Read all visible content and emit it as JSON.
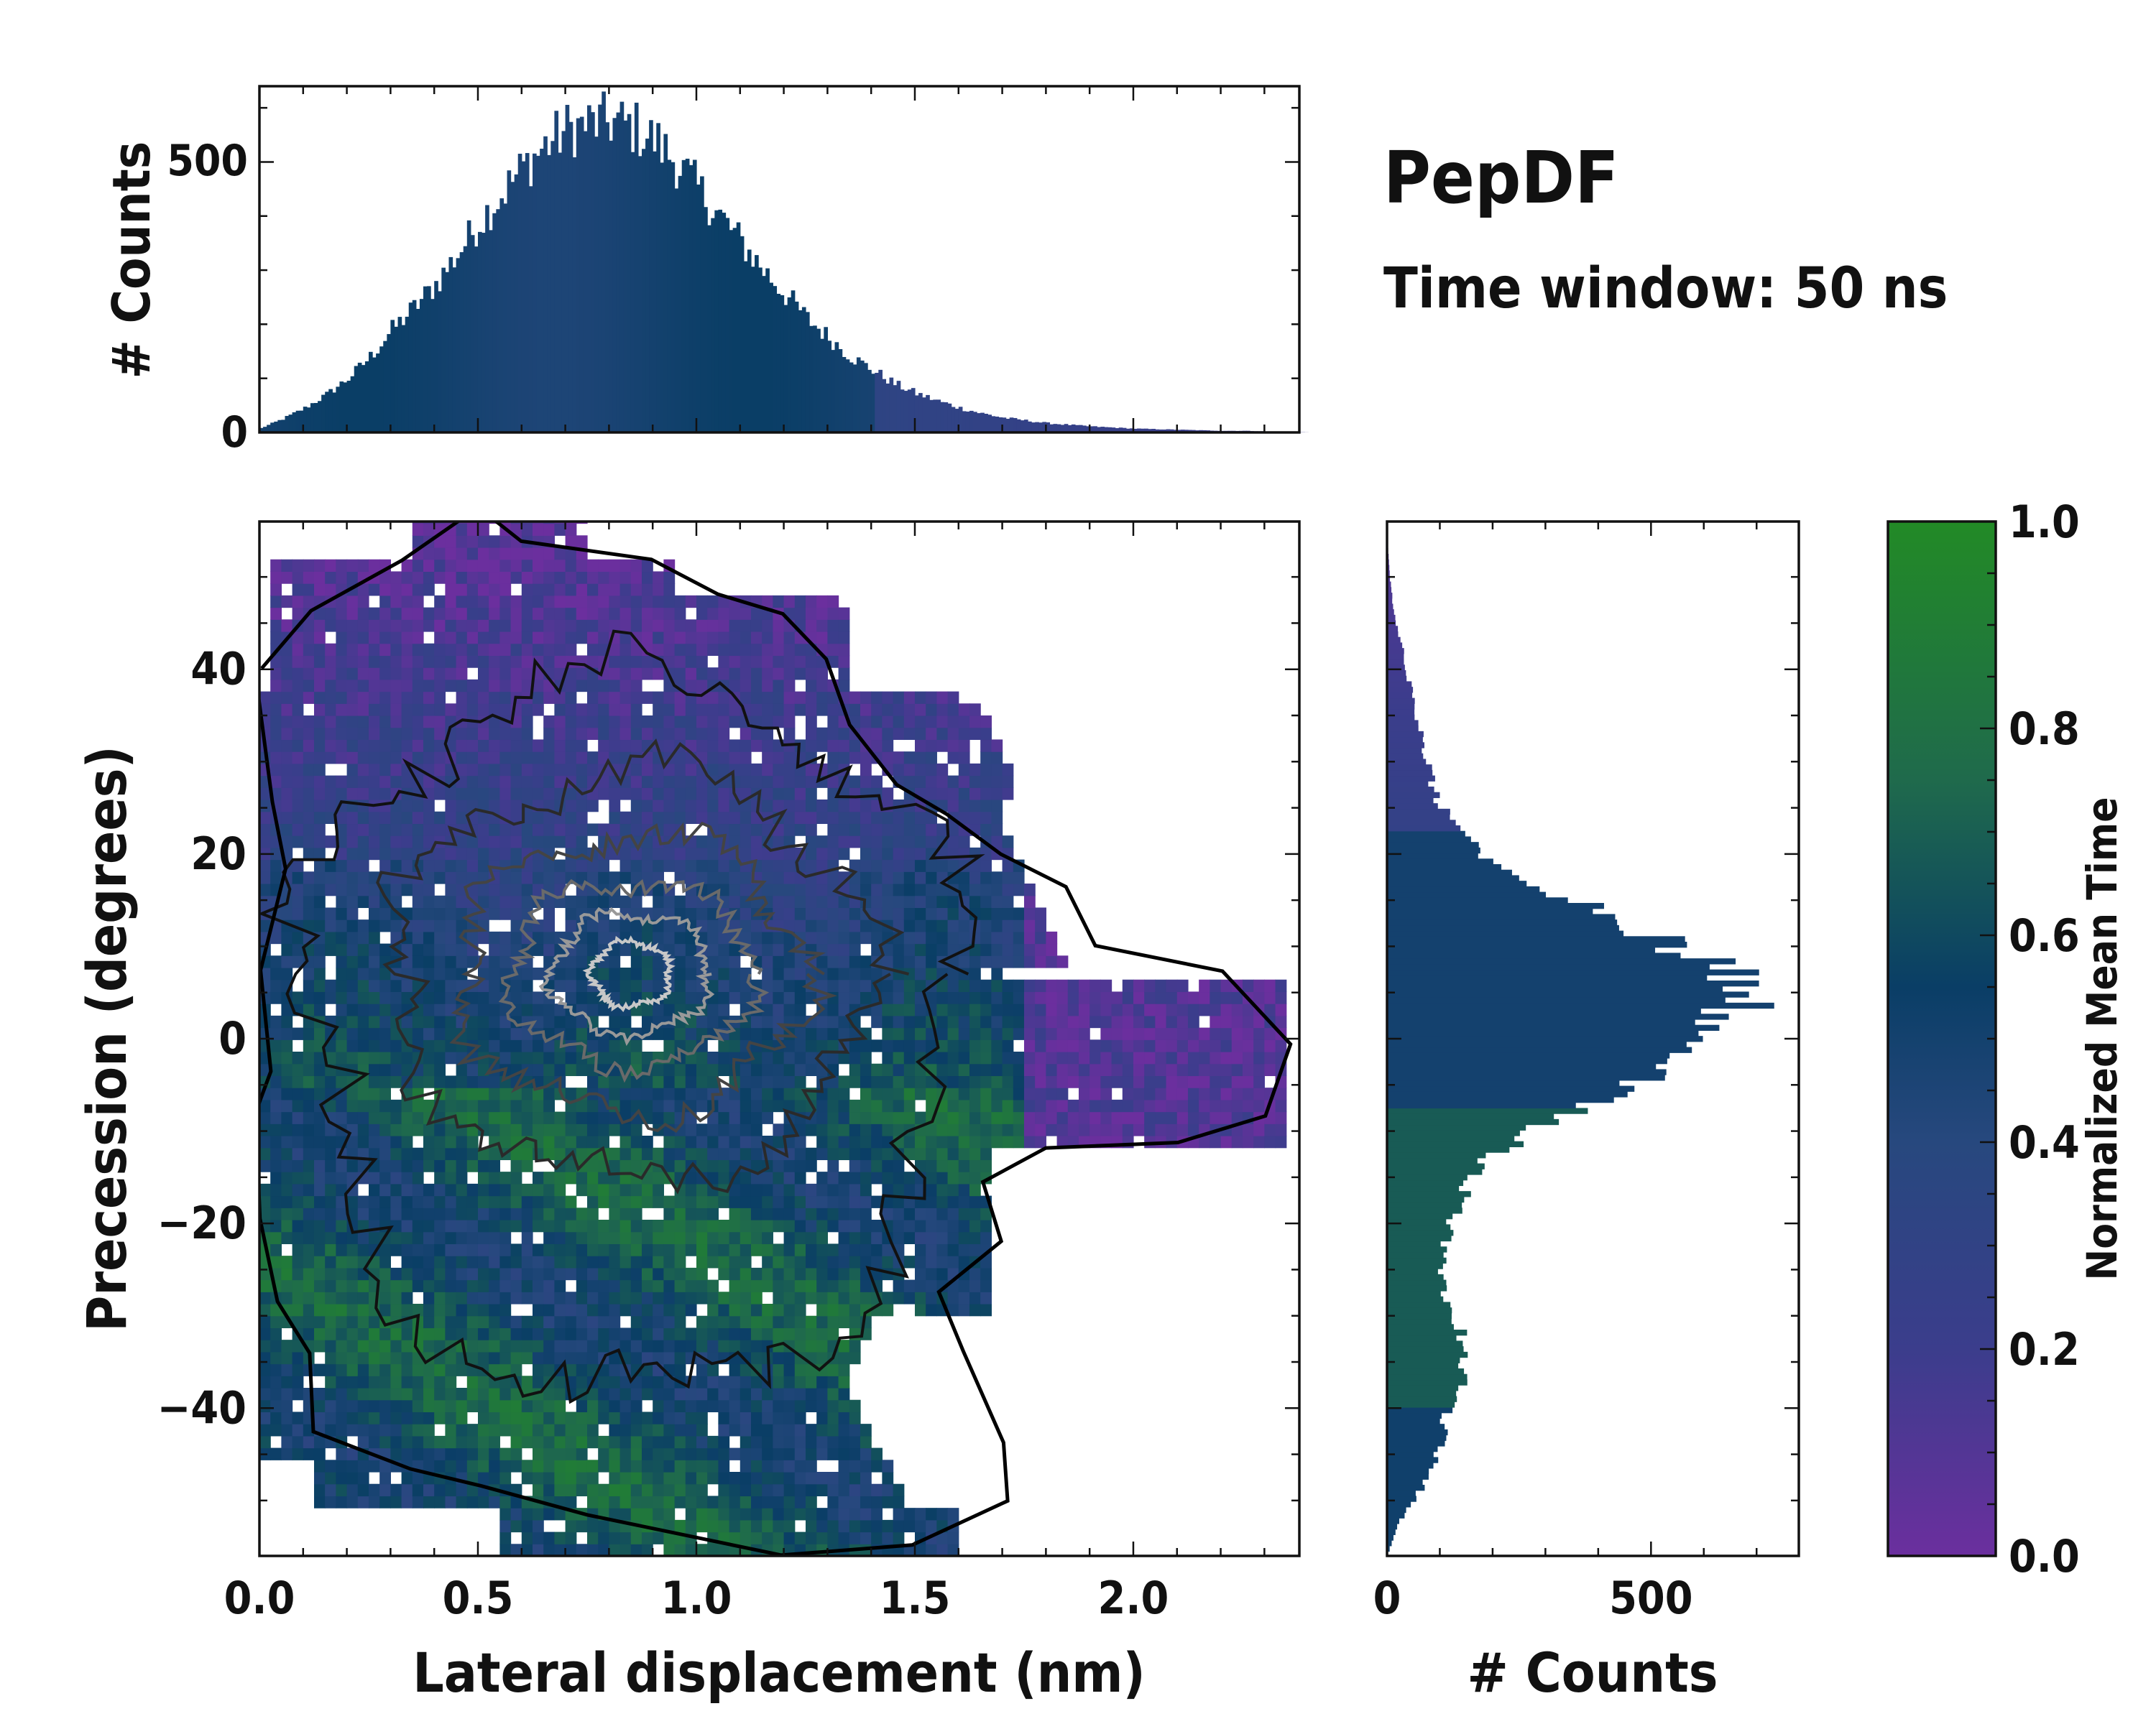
{
  "chart_data": [
    {
      "id": "top_hist",
      "type": "bar",
      "description": "Marginal histogram of lateral displacement",
      "ylabel": "# Counts",
      "xlim": [
        0.0,
        2.38
      ],
      "ylim": [
        0,
        640
      ],
      "yticks": [
        0,
        500
      ],
      "series": [
        {
          "x": [
            0.0,
            0.05,
            0.1,
            0.15,
            0.2,
            0.25,
            0.3,
            0.35,
            0.4,
            0.45,
            0.5,
            0.55,
            0.6,
            0.65,
            0.7,
            0.75,
            0.8,
            0.85,
            0.9,
            0.95,
            1.0,
            1.05,
            1.1,
            1.15,
            1.2,
            1.25,
            1.3,
            1.35,
            1.4,
            1.45,
            1.5,
            1.55,
            1.6,
            1.65,
            1.7,
            1.75,
            1.8,
            1.85,
            1.9,
            1.95,
            2.0,
            2.05,
            2.1,
            2.15,
            2.2,
            2.25,
            2.3,
            2.35
          ],
          "values": [
            8,
            25,
            45,
            70,
            100,
            140,
            190,
            230,
            275,
            330,
            390,
            440,
            490,
            530,
            560,
            570,
            575,
            565,
            540,
            500,
            450,
            400,
            350,
            300,
            255,
            210,
            175,
            140,
            115,
            90,
            72,
            58,
            45,
            35,
            27,
            22,
            17,
            14,
            11,
            9,
            7,
            6,
            5,
            4,
            3,
            3,
            2,
            1
          ]
        }
      ]
    },
    {
      "id": "main_map",
      "type": "heatmap",
      "description": "2D map of precession vs lateral displacement, colored by normalized mean time, with density contours",
      "xlabel": "Lateral displacement (nm)",
      "ylabel": "Precession (degrees)",
      "xlim": [
        0.0,
        2.38
      ],
      "ylim": [
        -56,
        56
      ],
      "xticks": [
        0.0,
        0.5,
        1.0,
        1.5,
        2.0
      ],
      "xticklabels": [
        "0.0",
        "0.5",
        "1.0",
        "1.5",
        "2.0"
      ],
      "yticks": [
        -40,
        -20,
        0,
        20,
        40
      ],
      "yticklabels": [
        "−40",
        "−20",
        "0",
        "20",
        "40"
      ],
      "contour_center": [
        0.85,
        7
      ],
      "contour_levels": 6
    },
    {
      "id": "right_hist",
      "type": "bar",
      "orientation": "horizontal",
      "description": "Marginal histogram of precession angle",
      "xlabel": "# Counts",
      "xlim": [
        0,
        780
      ],
      "xticks": [
        0,
        500
      ],
      "series": [
        {
          "y": [
            -54,
            -51,
            -48,
            -45,
            -42,
            -39,
            -36,
            -33,
            -30,
            -27,
            -24,
            -21,
            -18,
            -15,
            -12,
            -9,
            -6,
            -3,
            0,
            3,
            6,
            9,
            12,
            15,
            18,
            21,
            24,
            27,
            30,
            33,
            36,
            39,
            42,
            45,
            48,
            51,
            54
          ],
          "values": [
            5,
            25,
            60,
            90,
            105,
            115,
            140,
            155,
            135,
            115,
            105,
            110,
            125,
            150,
            190,
            270,
            380,
            480,
            570,
            640,
            690,
            630,
            520,
            400,
            270,
            180,
            130,
            95,
            80,
            70,
            55,
            45,
            35,
            22,
            12,
            6,
            2
          ]
        }
      ]
    },
    {
      "id": "colorbar",
      "type": "colorbar",
      "label": "Normalized Mean Time",
      "range": [
        0.0,
        1.0
      ],
      "ticks": [
        "0.0",
        "0.2",
        "0.4",
        "0.6",
        "0.8",
        "1.0"
      ],
      "colors": [
        "#6b2f9e",
        "#3b3d8c",
        "#27487e",
        "#0a3e66",
        "#1f6a4c",
        "#228a26"
      ]
    }
  ],
  "annotations": {
    "title": "PepDF",
    "subtitle": "Time window: 50 ns"
  }
}
